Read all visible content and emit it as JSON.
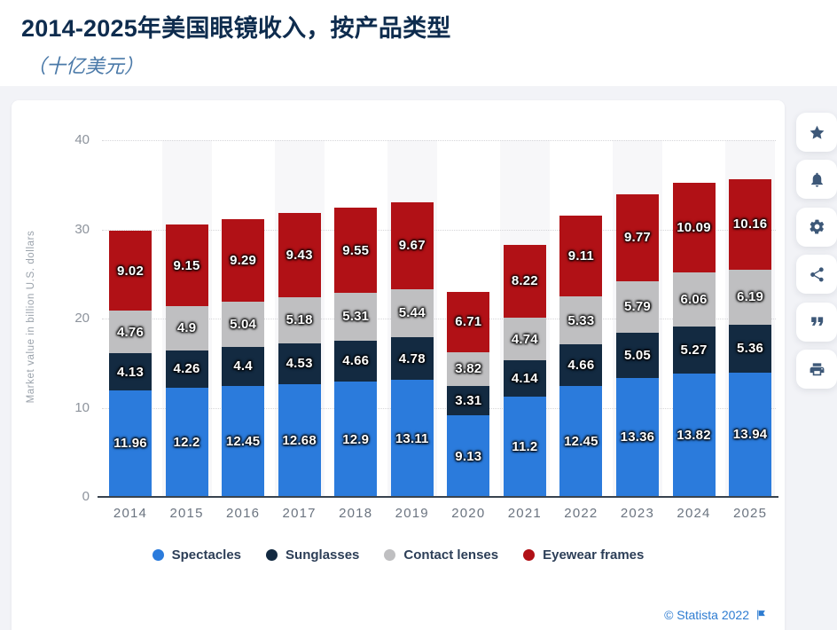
{
  "header": {
    "title": "2014-2025年美国眼镜收入，按产品类型",
    "subtitle": "（十亿美元）"
  },
  "chart_data": {
    "type": "bar",
    "stacked": true,
    "categories": [
      "2014",
      "2015",
      "2016",
      "2017",
      "2018",
      "2019",
      "2020",
      "2021",
      "2022",
      "2023",
      "2024",
      "2025"
    ],
    "series": [
      {
        "name": "Spectacles",
        "color": "#2b7bdc",
        "values": [
          11.96,
          12.2,
          12.45,
          12.68,
          12.9,
          13.11,
          9.13,
          11.2,
          12.45,
          13.36,
          13.82,
          13.94
        ]
      },
      {
        "name": "Sunglasses",
        "color": "#132a41",
        "values": [
          4.13,
          4.26,
          4.4,
          4.53,
          4.66,
          4.78,
          3.31,
          4.14,
          4.66,
          5.05,
          5.27,
          5.36
        ]
      },
      {
        "name": "Contact lenses",
        "color": "#bfbfc1",
        "values": [
          4.76,
          4.9,
          5.04,
          5.18,
          5.31,
          5.44,
          3.82,
          4.74,
          5.33,
          5.79,
          6.06,
          6.19
        ]
      },
      {
        "name": "Eyewear frames",
        "color": "#b11116",
        "values": [
          9.02,
          9.15,
          9.29,
          9.43,
          9.55,
          9.67,
          6.71,
          8.22,
          9.11,
          9.77,
          10.09,
          10.16
        ]
      }
    ],
    "ylabel": "Market value in billion U.S. dollars",
    "yticks": [
      0,
      10,
      20,
      30,
      40
    ],
    "ylim": [
      0,
      40
    ],
    "grid": "dotted-horizontal",
    "legend_position": "bottom",
    "plot_band_color": "#f7f7f9",
    "value_label_color": "#ffffff"
  },
  "toolbar": {
    "buttons": [
      {
        "icon": "star",
        "name": "favorite-button"
      },
      {
        "icon": "bell",
        "name": "alert-button"
      },
      {
        "icon": "gear",
        "name": "settings-button"
      },
      {
        "icon": "share",
        "name": "share-button"
      },
      {
        "icon": "quote",
        "name": "cite-button"
      },
      {
        "icon": "printer",
        "name": "print-button"
      }
    ]
  },
  "footer": {
    "copyright": "© Statista 2022",
    "link_color": "#2e7cd1"
  }
}
